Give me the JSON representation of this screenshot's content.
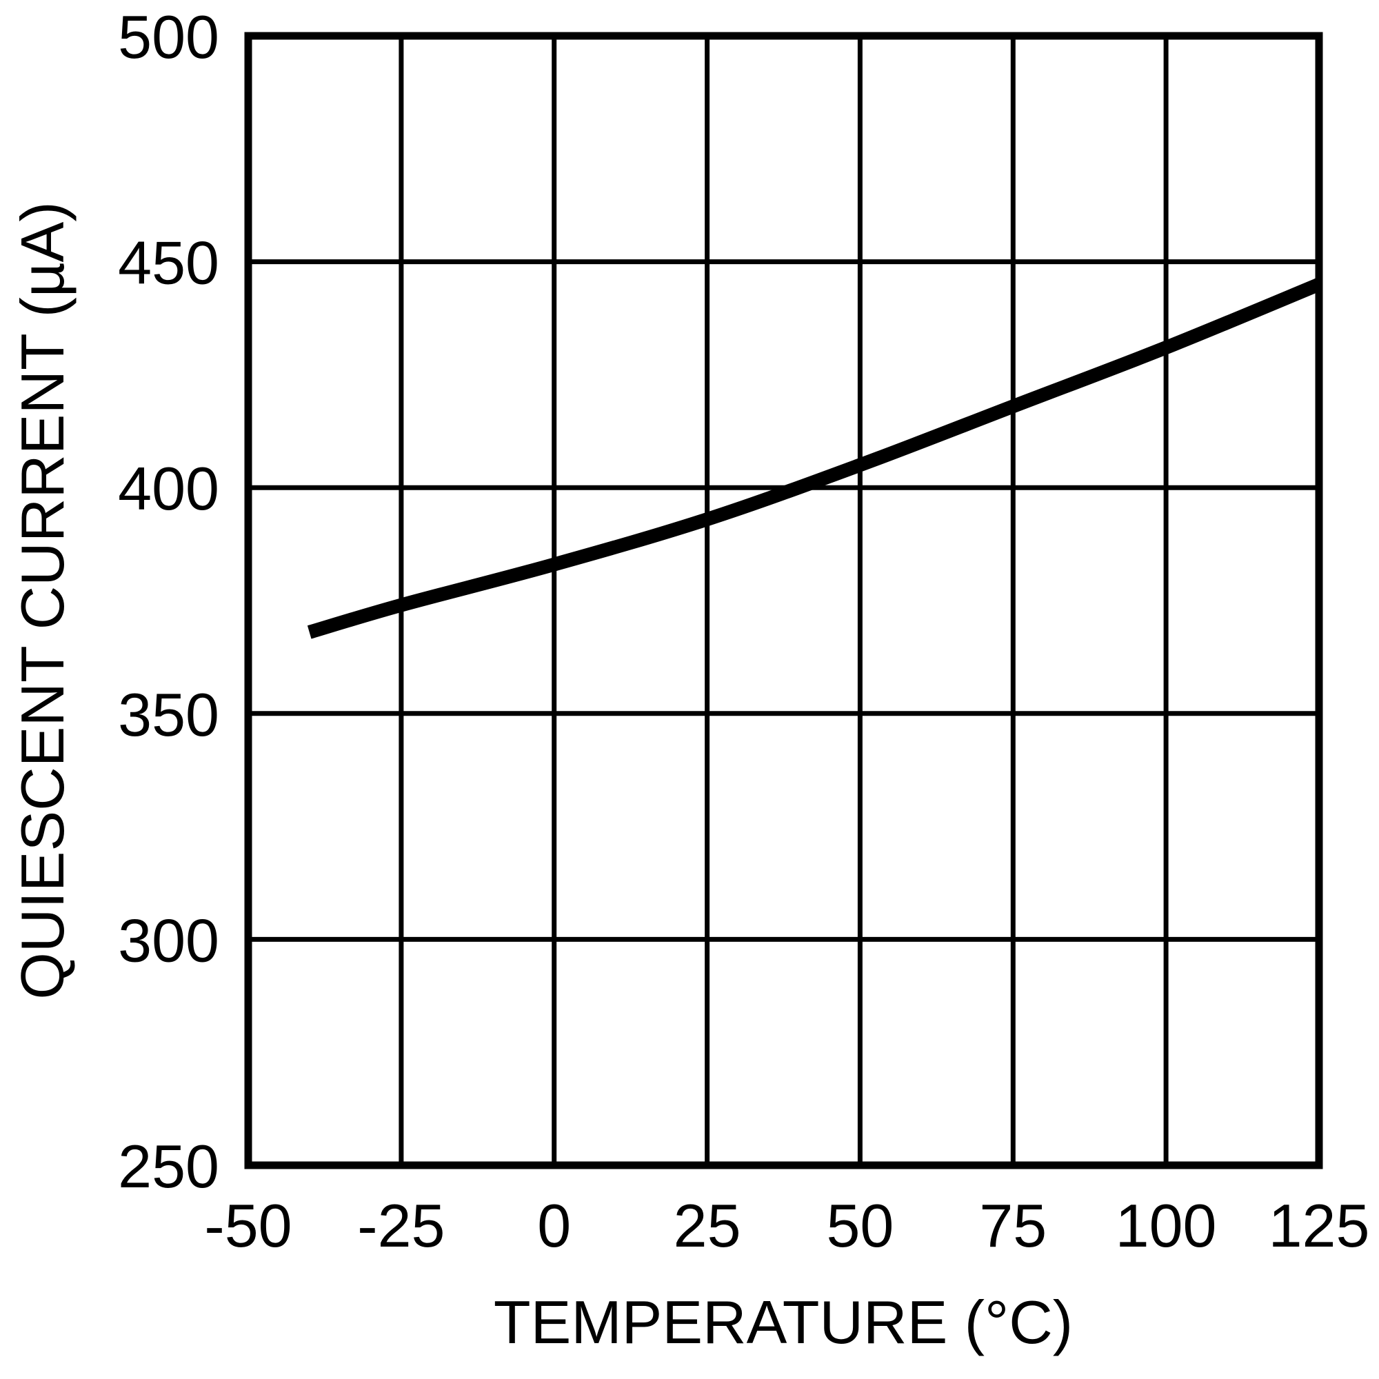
{
  "chart_data": {
    "type": "line",
    "title": "",
    "xlabel": "TEMPERATURE (°C)",
    "ylabel": "QUIESCENT CURRENT (µA)",
    "xlim": [
      -50,
      125
    ],
    "ylim": [
      250,
      500
    ],
    "xticks": [
      -50,
      -25,
      0,
      25,
      50,
      75,
      100,
      125
    ],
    "yticks": [
      250,
      300,
      350,
      400,
      450,
      500
    ],
    "grid": true,
    "legend": "none",
    "series": [
      {
        "name": "quiescent-current",
        "x": [
          -40,
          -25,
          0,
          25,
          50,
          75,
          100,
          125
        ],
        "y": [
          368,
          374,
          383,
          393,
          405,
          418,
          431,
          445
        ]
      }
    ],
    "colors": {
      "line": "#000000",
      "grid": "#000000",
      "border": "#000000",
      "text": "#000000",
      "background": "#ffffff"
    }
  }
}
